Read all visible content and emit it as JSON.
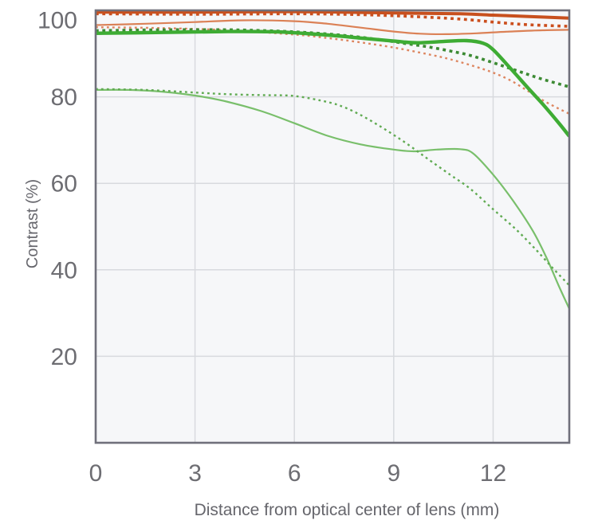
{
  "figure": {
    "background": "#ffffff",
    "plot_background": "#f6f7f9",
    "grid_color": "#d8dade",
    "border_color": "#70707b",
    "tick_label_color": "#6d6d72",
    "axis_title_color": "#66666c"
  },
  "chart_data": {
    "type": "line",
    "title": "",
    "xlabel": "Distance from optical center of lens (mm)",
    "ylabel": "Contrast (%)",
    "xlim": [
      0,
      14.3
    ],
    "ylim": [
      0,
      100
    ],
    "xticks": [
      0,
      3,
      6,
      9,
      12
    ],
    "yticks": [
      20,
      40,
      60,
      80,
      100
    ],
    "grid": true,
    "legend_position": "none",
    "series": [
      {
        "name": "red-thin-solid",
        "color": "#DB8156",
        "width": 2.2,
        "style": "solid",
        "x": [
          0,
          1.5,
          3,
          4.5,
          6,
          7,
          8,
          9,
          9.8,
          10.6,
          11.5,
          12.5,
          13.5,
          14.3
        ],
        "y": [
          96.6,
          96.9,
          97.3,
          97.7,
          97.5,
          96.9,
          96.0,
          95.1,
          94.6,
          94.5,
          94.7,
          95.1,
          95.4,
          95.5
        ]
      },
      {
        "name": "green-thin-solid",
        "color": "#79BF6B",
        "width": 2.2,
        "style": "solid",
        "x": [
          0,
          1,
          2,
          3,
          3.9,
          5,
          6,
          7,
          8,
          9,
          9.6,
          10.3,
          11,
          11.4,
          12,
          12.6,
          13.2,
          13.6,
          14,
          14.3
        ],
        "y": [
          81.6,
          81.6,
          81.2,
          80.3,
          79.0,
          76.7,
          73.9,
          71.0,
          69.0,
          67.8,
          67.4,
          67.8,
          67.9,
          66.9,
          62.0,
          56.0,
          49.0,
          43.0,
          36.0,
          31.0
        ]
      },
      {
        "name": "red-thin-dotted",
        "color": "#DD8660",
        "width": 2.4,
        "style": "dotted",
        "dash": [
          2.8,
          4.2
        ],
        "x": [
          0,
          2,
          4,
          6,
          7,
          8,
          9,
          10,
          10.7,
          11.5,
          12,
          12.5,
          13,
          13.5,
          14,
          14.3
        ],
        "y": [
          96.1,
          95.9,
          95.4,
          94.4,
          93.6,
          92.6,
          91.4,
          89.9,
          88.7,
          86.9,
          85.6,
          83.9,
          81.6,
          79.2,
          77.2,
          76.1
        ]
      },
      {
        "name": "green-thin-dotted",
        "color": "#61AB53",
        "width": 2.4,
        "style": "dotted",
        "dash": [
          2.8,
          4.2
        ],
        "x": [
          0,
          1.5,
          3,
          4,
          5,
          6,
          7,
          7.5,
          8,
          8.5,
          9,
          9.5,
          10,
          10.7,
          11.3,
          12,
          12.7,
          13.3,
          13.8,
          14.3
        ],
        "y": [
          81.8,
          81.6,
          81.0,
          80.6,
          80.4,
          80.2,
          78.8,
          77.6,
          75.8,
          73.6,
          71.2,
          68.6,
          65.8,
          62.0,
          58.8,
          54.0,
          49.3,
          44.6,
          40.4,
          36.4
        ]
      },
      {
        "name": "green-thick-dotted",
        "color": "#3C8A33",
        "width": 3.6,
        "style": "dotted",
        "dash": [
          3.8,
          4.6
        ],
        "x": [
          0,
          2,
          4,
          5.5,
          6.5,
          7.5,
          8.5,
          9.3,
          10,
          10.7,
          11.3,
          12,
          12.7,
          13.4,
          14.3
        ],
        "y": [
          95.3,
          95.5,
          95.5,
          95.2,
          94.8,
          94.2,
          93.3,
          92.4,
          91.6,
          90.6,
          89.6,
          87.9,
          86.1,
          84.3,
          82.3
        ]
      },
      {
        "name": "red-thick-dotted",
        "color": "#CB4E1D",
        "width": 3.6,
        "style": "dotted",
        "dash": [
          3.8,
          4.6
        ],
        "x": [
          0,
          3,
          6,
          8,
          9.5,
          11,
          12,
          13,
          14.3
        ],
        "y": [
          99.2,
          99.1,
          99.2,
          99.0,
          98.6,
          98.0,
          97.3,
          96.7,
          96.3
        ]
      },
      {
        "name": "green-thick-solid",
        "color": "#3EAC34",
        "width": 4.4,
        "style": "solid",
        "x": [
          0,
          2,
          4,
          5.5,
          7,
          8,
          9,
          9.7,
          10.5,
          11.2,
          11.7,
          12,
          12.5,
          13,
          13.5,
          14,
          14.3
        ],
        "y": [
          94.7,
          94.9,
          95.1,
          95.0,
          94.3,
          93.6,
          92.9,
          92.5,
          92.8,
          93.0,
          92.4,
          90.9,
          86.8,
          82.5,
          78.3,
          73.8,
          70.9
        ]
      },
      {
        "name": "red-thick-solid",
        "color": "#C8501E",
        "width": 4.0,
        "style": "solid",
        "x": [
          0,
          3,
          6,
          9,
          11,
          12,
          13,
          14.3
        ],
        "y": [
          99.6,
          99.6,
          99.7,
          99.4,
          99.2,
          98.9,
          98.6,
          98.2
        ]
      }
    ]
  }
}
